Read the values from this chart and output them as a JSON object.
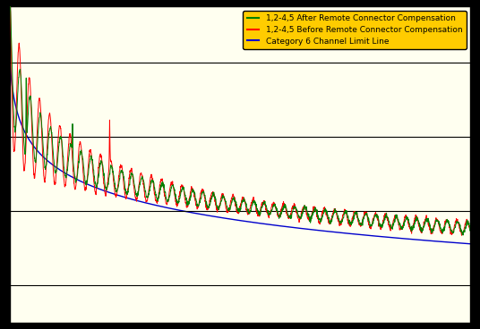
{
  "legend_labels": [
    "1,2-4,5 After Remote Connector Compensation",
    "1,2-4,5 Before Remote Connector Compensation",
    "Category 6 Channel Limit Line"
  ],
  "legend_colors": [
    "#008000",
    "#ff0000",
    "#0000cc"
  ],
  "line_colors": [
    "#008000",
    "#ff0000",
    "#0000cc"
  ],
  "background_color": "#fffff0",
  "legend_bg_color": "#ffcc00",
  "grid_color": "#000000",
  "xlim": [
    1,
    250
  ],
  "ylim": [
    -70,
    15
  ],
  "figsize": [
    5.36,
    3.68
  ],
  "dpi": 100
}
